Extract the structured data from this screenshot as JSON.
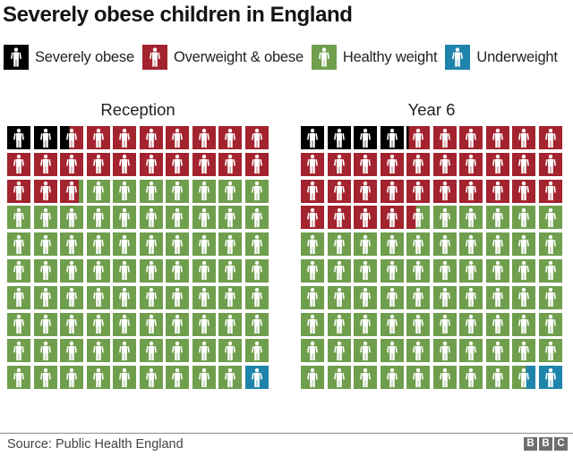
{
  "title": "Severely obese children in England",
  "legend": [
    {
      "label": "Severely obese",
      "color": "#000000"
    },
    {
      "label": "Overweight & obese",
      "color": "#a3232e"
    },
    {
      "label": "Healthy weight",
      "color": "#6f9e4d"
    },
    {
      "label": "Underweight",
      "color": "#1f84ab"
    }
  ],
  "chart_data": {
    "type": "waffle",
    "title": "Severely obese children in England",
    "units": "percent of children (1 icon = 1%)",
    "grid": {
      "rows": 10,
      "cols": 10
    },
    "legend_position": "top",
    "categories": [
      "Severely obese",
      "Overweight & obese",
      "Healthy weight",
      "Underweight"
    ],
    "colors": [
      "#000000",
      "#a3232e",
      "#6f9e4d",
      "#1f84ab"
    ],
    "charts": [
      {
        "title": "Reception",
        "values": [
          2.4,
          20.4,
          76.2,
          1.0
        ],
        "cumulative": [
          2.4,
          22.8,
          99.0,
          100.0
        ]
      },
      {
        "title": "Year 6",
        "values": [
          4.1,
          30.3,
          64.2,
          1.4
        ],
        "cumulative": [
          4.1,
          34.4,
          98.6,
          100.0
        ]
      }
    ]
  },
  "footer": {
    "source": "Source: Public Health England",
    "logo": [
      "B",
      "B",
      "C"
    ]
  }
}
